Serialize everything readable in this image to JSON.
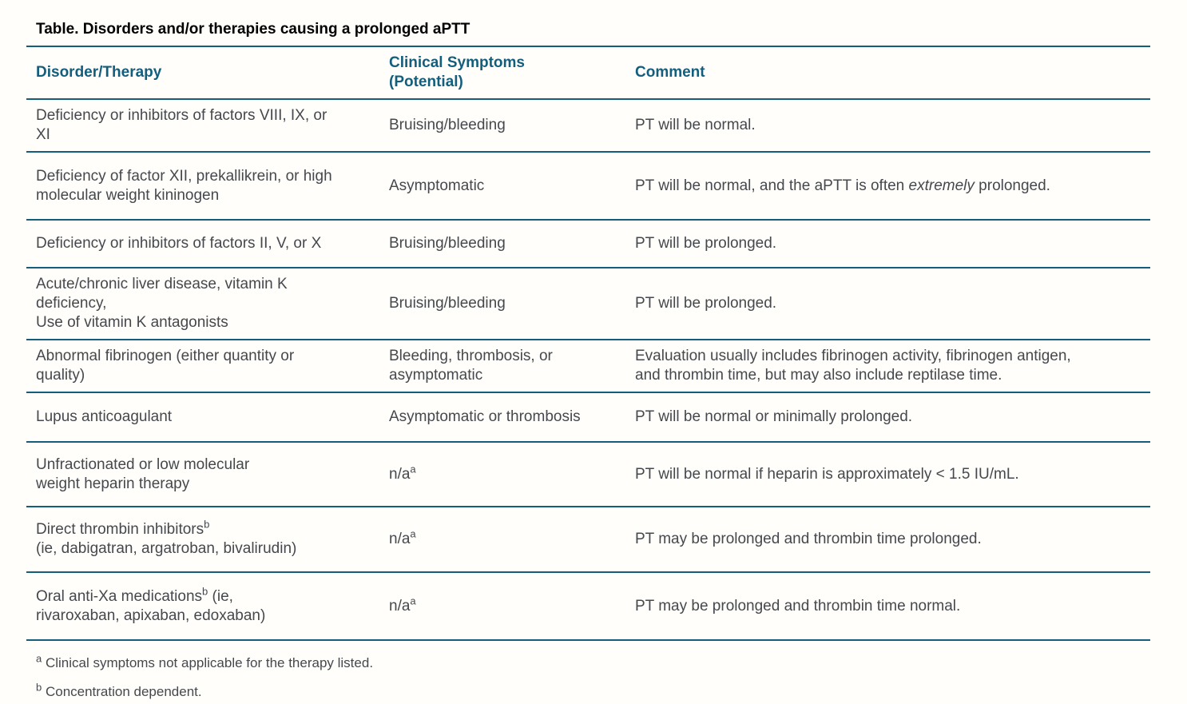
{
  "title": "Table. Disorders and/or therapies causing a prolonged aPTT",
  "colors": {
    "accent_teal": "#135e7d",
    "body_text": "#45484d",
    "title_text": "#000000",
    "background": "#fffefb"
  },
  "table": {
    "headers": [
      "Disorder/Therapy",
      "Clinical Symptoms\n(Potential)",
      "Comment"
    ],
    "rows": [
      {
        "disorder": "Deficiency or inhibitors of factors VIII, IX, or\nXI",
        "symptoms": "Bruising/bleeding",
        "comment": "PT will be normal."
      },
      {
        "disorder": "Deficiency of factor XII, prekallikrein, or high\nmolecular weight kininogen",
        "symptoms": "Asymptomatic",
        "comment": "PT will be normal, and the aPTT is often *extremely* prolonged."
      },
      {
        "disorder": "Deficiency or inhibitors of factors II, V, or X",
        "symptoms": "Bruising/bleeding",
        "comment": "PT will be prolonged."
      },
      {
        "disorder": "Acute/chronic liver disease, vitamin K\ndeficiency,\nUse of vitamin K antagonists",
        "symptoms": "Bruising/bleeding",
        "comment": "PT will be prolonged."
      },
      {
        "disorder": "Abnormal fibrinogen (either quantity or\nquality)",
        "symptoms": "Bleeding, thrombosis, or\nasymptomatic",
        "comment": "Evaluation usually includes fibrinogen activity, fibrinogen antigen,\nand thrombin time, but may also include reptilase time."
      },
      {
        "disorder": "Lupus anticoagulant",
        "symptoms": "Asymptomatic or thrombosis",
        "comment": "PT will be normal or minimally prolonged."
      },
      {
        "disorder": "Unfractionated or low molecular\nweight heparin therapy",
        "symptoms": "n/a^a^",
        "comment": "PT will be normal if heparin is approximately < 1.5 IU/mL."
      },
      {
        "disorder": "Direct thrombin inhibitors^b^\n(ie, dabigatran, argatroban, bivalirudin)",
        "symptoms": "n/a^a^",
        "comment": "PT may be prolonged and thrombin time prolonged."
      },
      {
        "disorder": "Oral anti-Xa medications^b^ (ie,\nrivaroxaban, apixaban, edoxaban)",
        "symptoms": "n/a^a^",
        "comment": "PT may be prolonged and thrombin time normal."
      }
    ]
  },
  "footnotes": [
    "^a^ Clinical symptoms not applicable for the therapy listed.",
    "^b^ Concentration dependent."
  ]
}
